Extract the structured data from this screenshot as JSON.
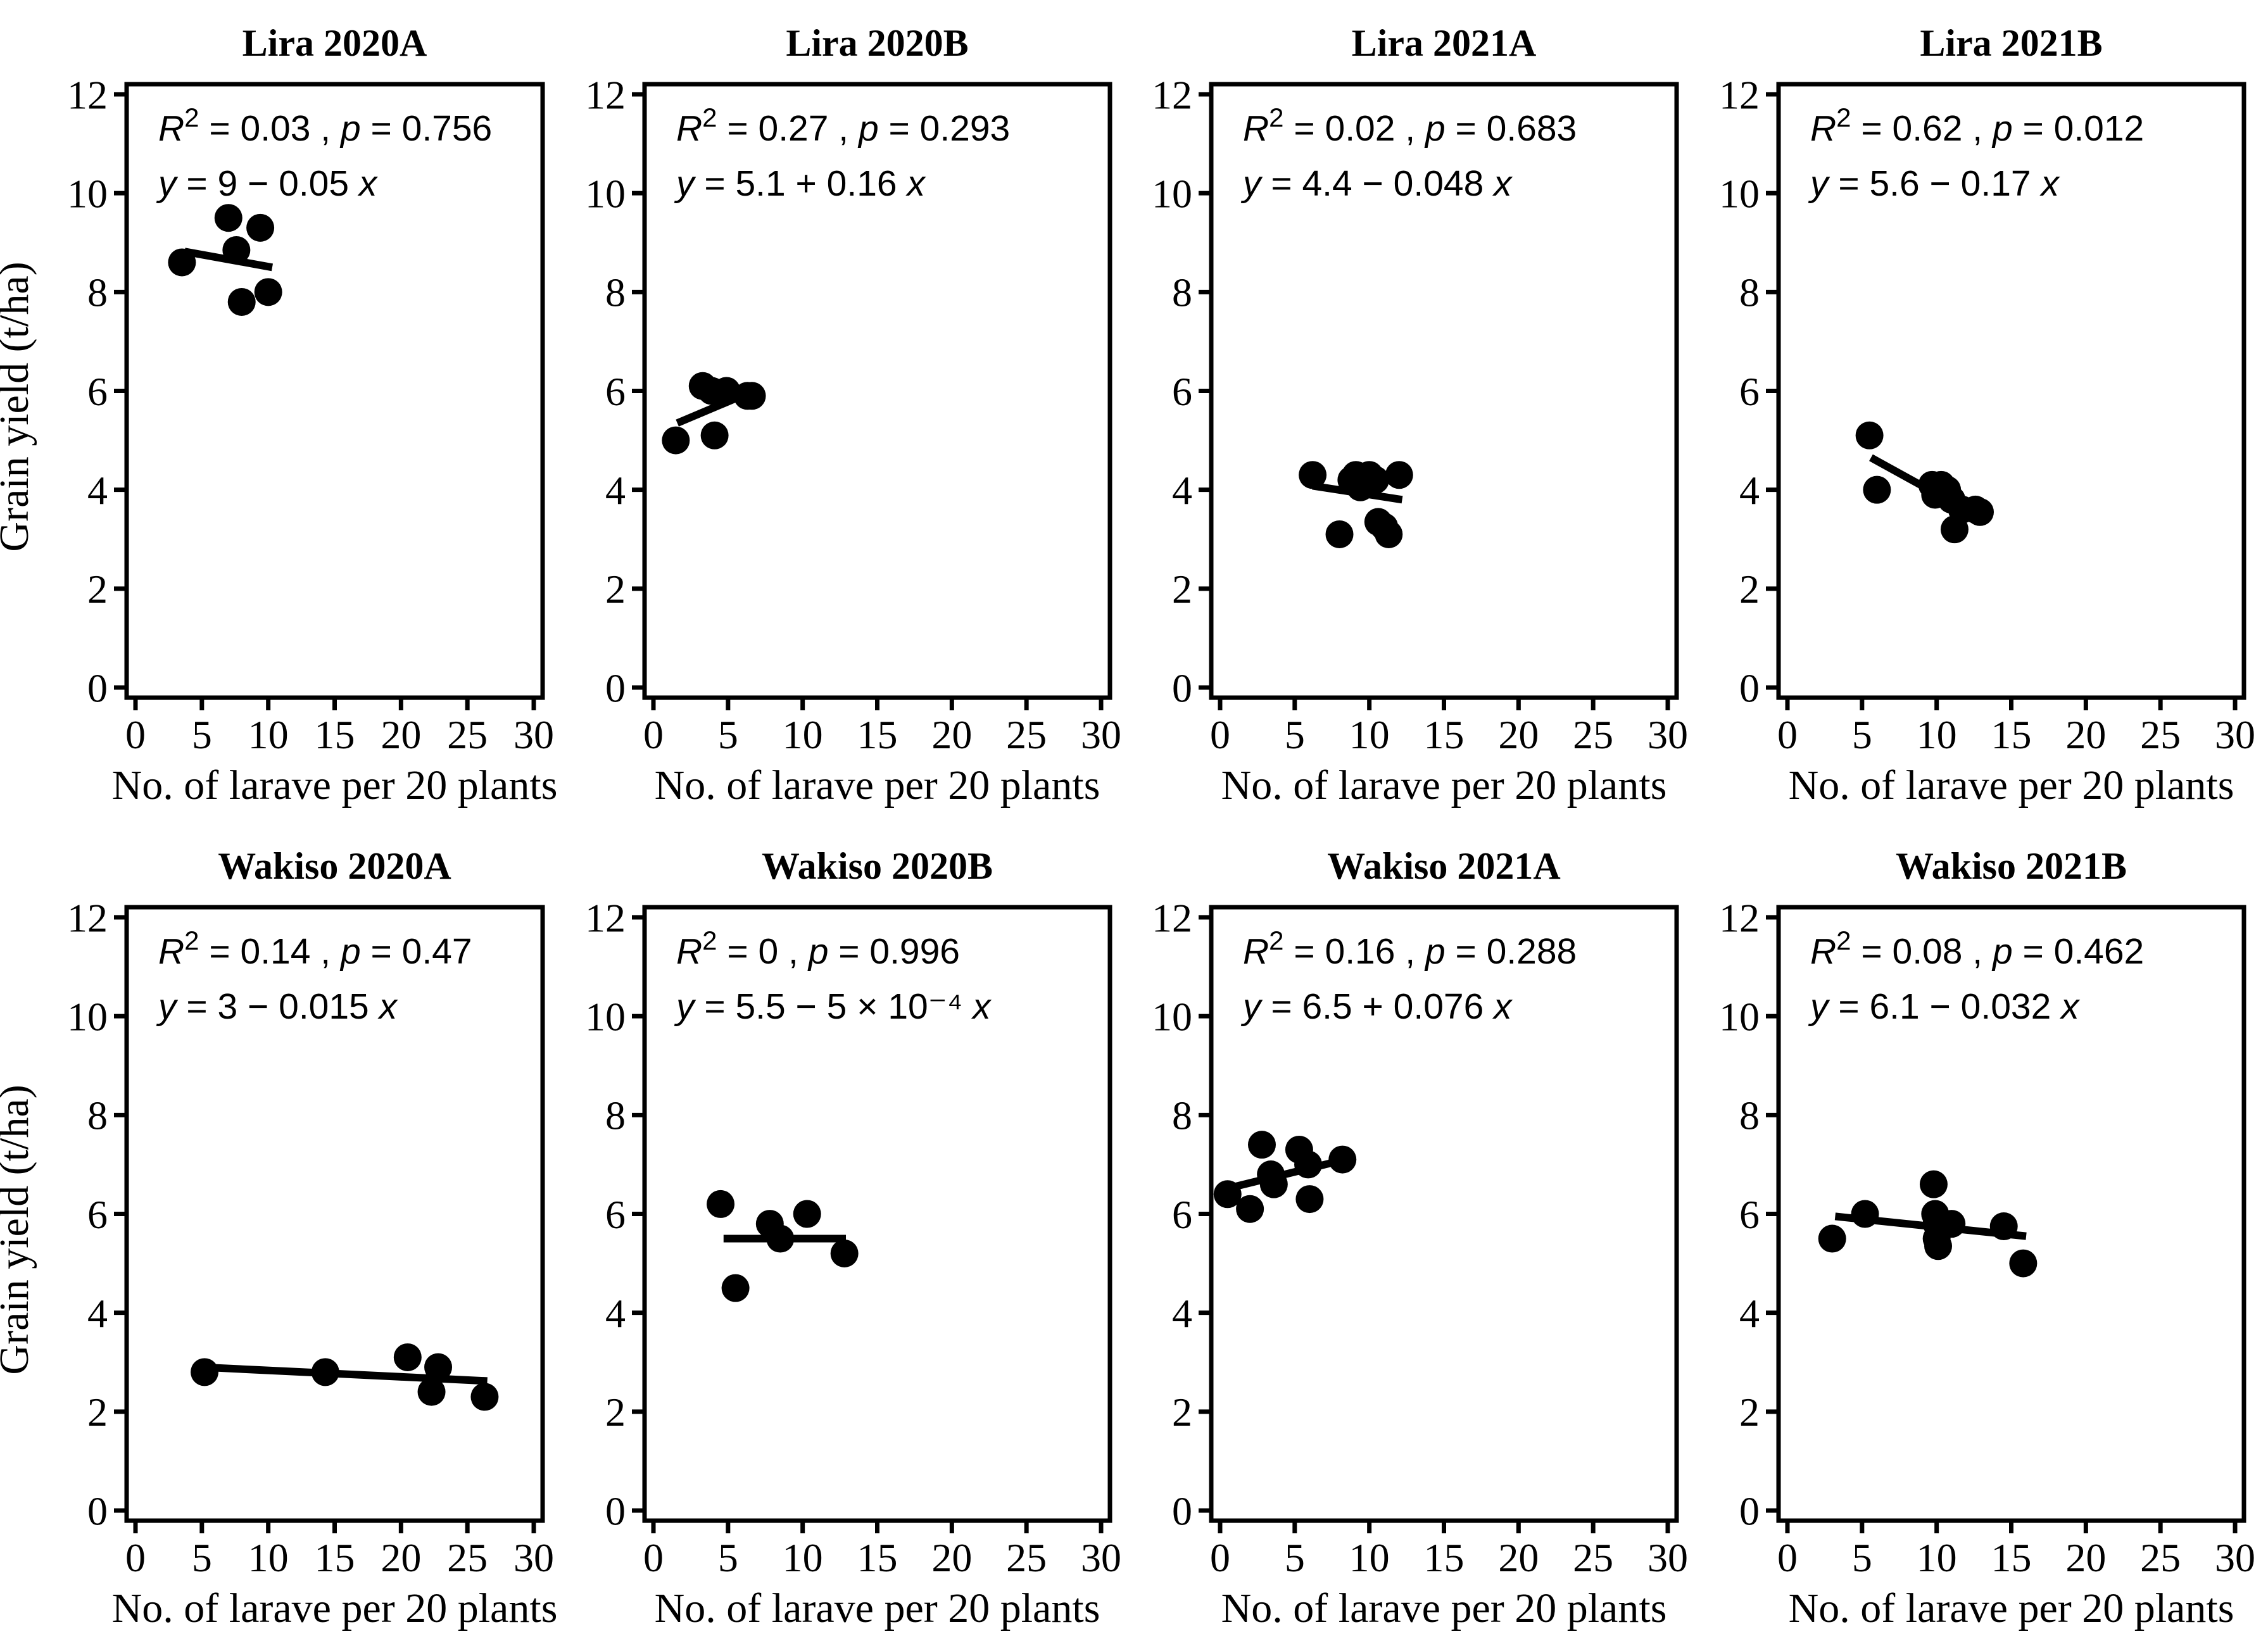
{
  "figure": {
    "background": "#ffffff",
    "ink": "#000000",
    "xlabel": "No. of larave per 20 plants",
    "ylabel": "Grain yield (t/ha)",
    "r2_symbol": "R",
    "r2_exponent": "2",
    "p_symbol": "p"
  },
  "chart_data": [
    {
      "type": "scatter",
      "title": "Lira 2020A",
      "r2": "0.03",
      "p": "0.756",
      "equation": "y = 9 − 0.05 x",
      "points": [
        [
          3.5,
          8.6
        ],
        [
          7.0,
          9.5
        ],
        [
          7.6,
          8.85
        ],
        [
          8.0,
          7.8
        ],
        [
          9.4,
          9.3
        ],
        [
          10.0,
          8.0
        ]
      ],
      "trend": {
        "x1": 3.7,
        "y1": 8.82,
        "x2": 10.3,
        "y2": 8.5
      },
      "xlim": [
        0,
        30
      ],
      "ylim": [
        0,
        12
      ],
      "xticks": [
        0,
        5,
        10,
        15,
        20,
        25,
        30
      ],
      "yticks": [
        0,
        2,
        4,
        6,
        8,
        10,
        12
      ],
      "show_ylabel": true
    },
    {
      "type": "scatter",
      "title": "Lira 2020B",
      "r2": "0.27",
      "p": "0.293",
      "equation": "y = 5.1 + 0.16 x",
      "points": [
        [
          1.5,
          5.0
        ],
        [
          3.3,
          6.1
        ],
        [
          3.9,
          6.0
        ],
        [
          4.1,
          5.1
        ],
        [
          4.9,
          6.0
        ],
        [
          6.3,
          5.9
        ],
        [
          6.6,
          5.9
        ]
      ],
      "trend": {
        "x1": 1.6,
        "y1": 5.35,
        "x2": 6.7,
        "y2": 6.0
      },
      "xlim": [
        0,
        30
      ],
      "ylim": [
        0,
        12
      ],
      "xticks": [
        0,
        5,
        10,
        15,
        20,
        25,
        30
      ],
      "yticks": [
        0,
        2,
        4,
        6,
        8,
        10,
        12
      ],
      "show_ylabel": false
    },
    {
      "type": "scatter",
      "title": "Lira 2021A",
      "r2": "0.02",
      "p": "0.683",
      "equation": "y = 4.4 − 0.048 x",
      "points": [
        [
          6.2,
          4.3
        ],
        [
          8.0,
          3.1
        ],
        [
          8.8,
          4.2
        ],
        [
          9.1,
          4.3
        ],
        [
          9.4,
          4.05
        ],
        [
          10.0,
          4.3
        ],
        [
          10.4,
          4.2
        ],
        [
          10.6,
          3.35
        ],
        [
          11.0,
          3.25
        ],
        [
          11.3,
          3.1
        ],
        [
          12.0,
          4.3
        ]
      ],
      "trend": {
        "x1": 6.2,
        "y1": 4.08,
        "x2": 12.2,
        "y2": 3.8
      },
      "xlim": [
        0,
        30
      ],
      "ylim": [
        0,
        12
      ],
      "xticks": [
        0,
        5,
        10,
        15,
        20,
        25,
        30
      ],
      "yticks": [
        0,
        2,
        4,
        6,
        8,
        10,
        12
      ],
      "show_ylabel": false
    },
    {
      "type": "scatter",
      "title": "Lira 2021B",
      "r2": "0.62",
      "p": "0.012",
      "equation": "y = 5.6 − 0.17 x",
      "points": [
        [
          5.5,
          5.1
        ],
        [
          6.0,
          4.0
        ],
        [
          9.7,
          4.1
        ],
        [
          9.9,
          3.9
        ],
        [
          10.3,
          4.1
        ],
        [
          10.7,
          4.0
        ],
        [
          11.0,
          3.8
        ],
        [
          11.2,
          3.2
        ],
        [
          11.7,
          3.6
        ],
        [
          12.6,
          3.6
        ],
        [
          12.9,
          3.55
        ]
      ],
      "trend": {
        "x1": 5.6,
        "y1": 4.65,
        "x2": 13.0,
        "y2": 3.42
      },
      "xlim": [
        0,
        30
      ],
      "ylim": [
        0,
        12
      ],
      "xticks": [
        0,
        5,
        10,
        15,
        20,
        25,
        30
      ],
      "yticks": [
        0,
        2,
        4,
        6,
        8,
        10,
        12
      ],
      "show_ylabel": false
    },
    {
      "type": "scatter",
      "title": "Wakiso 2020A",
      "r2": "0.14",
      "p": "0.47",
      "equation": "y = 3 − 0.015 x",
      "points": [
        [
          5.2,
          2.8
        ],
        [
          14.3,
          2.8
        ],
        [
          20.5,
          3.1
        ],
        [
          22.3,
          2.4
        ],
        [
          22.8,
          2.9
        ],
        [
          26.3,
          2.3
        ]
      ],
      "trend": {
        "x1": 5.0,
        "y1": 2.9,
        "x2": 26.5,
        "y2": 2.62
      },
      "xlim": [
        0,
        30
      ],
      "ylim": [
        0,
        12
      ],
      "xticks": [
        0,
        5,
        10,
        15,
        20,
        25,
        30
      ],
      "yticks": [
        0,
        2,
        4,
        6,
        8,
        10,
        12
      ],
      "show_ylabel": true
    },
    {
      "type": "scatter",
      "title": "Wakiso 2020B",
      "r2": "0",
      "p": "0.996",
      "equation": "y = 5.5 − 5 × 10⁻⁴ x",
      "points": [
        [
          4.5,
          6.2
        ],
        [
          5.5,
          4.5
        ],
        [
          7.8,
          5.8
        ],
        [
          8.5,
          5.5
        ],
        [
          10.3,
          6.0
        ],
        [
          12.8,
          5.2
        ]
      ],
      "trend": {
        "x1": 4.7,
        "y1": 5.5,
        "x2": 12.9,
        "y2": 5.5
      },
      "xlim": [
        0,
        30
      ],
      "ylim": [
        0,
        12
      ],
      "xticks": [
        0,
        5,
        10,
        15,
        20,
        25,
        30
      ],
      "yticks": [
        0,
        2,
        4,
        6,
        8,
        10,
        12
      ],
      "show_ylabel": false
    },
    {
      "type": "scatter",
      "title": "Wakiso 2021A",
      "r2": "0.16",
      "p": "0.288",
      "equation": "y = 6.5 + 0.076 x",
      "points": [
        [
          0.5,
          6.4
        ],
        [
          2.0,
          6.1
        ],
        [
          2.8,
          7.4
        ],
        [
          3.4,
          6.8
        ],
        [
          3.6,
          6.6
        ],
        [
          5.3,
          7.3
        ],
        [
          5.9,
          7.0
        ],
        [
          6.0,
          6.3
        ],
        [
          8.2,
          7.1
        ]
      ],
      "trend": {
        "x1": 0.0,
        "y1": 6.48,
        "x2": 8.4,
        "y2": 7.1
      },
      "xlim": [
        0,
        30
      ],
      "ylim": [
        0,
        12
      ],
      "xticks": [
        0,
        5,
        10,
        15,
        20,
        25,
        30
      ],
      "yticks": [
        0,
        2,
        4,
        6,
        8,
        10,
        12
      ],
      "show_ylabel": false
    },
    {
      "type": "scatter",
      "title": "Wakiso 2021B",
      "r2": "0.08",
      "p": "0.462",
      "equation": "y = 6.1 − 0.032 x",
      "points": [
        [
          3.0,
          5.5
        ],
        [
          5.2,
          6.0
        ],
        [
          9.8,
          6.6
        ],
        [
          9.9,
          6.0
        ],
        [
          10.0,
          5.8
        ],
        [
          10.0,
          5.5
        ],
        [
          10.1,
          5.35
        ],
        [
          11.0,
          5.8
        ],
        [
          14.5,
          5.75
        ],
        [
          15.8,
          5.0
        ]
      ],
      "trend": {
        "x1": 3.2,
        "y1": 5.95,
        "x2": 16.0,
        "y2": 5.55
      },
      "xlim": [
        0,
        30
      ],
      "ylim": [
        0,
        12
      ],
      "xticks": [
        0,
        5,
        10,
        15,
        20,
        25,
        30
      ],
      "yticks": [
        0,
        2,
        4,
        6,
        8,
        10,
        12
      ],
      "show_ylabel": false
    }
  ]
}
